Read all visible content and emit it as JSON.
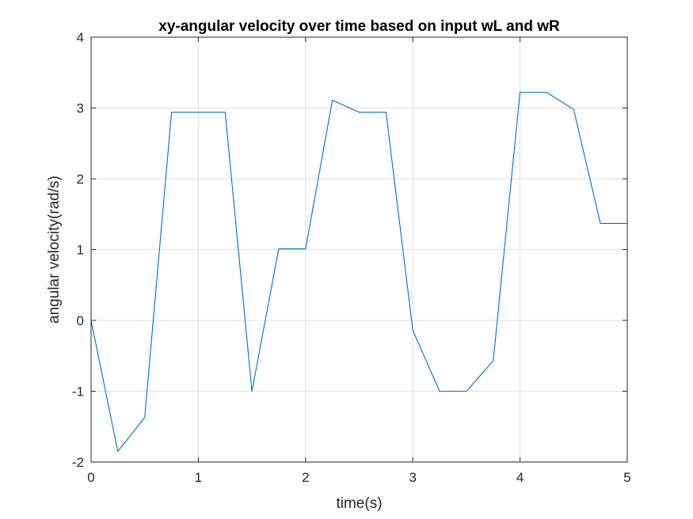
{
  "chart_data": {
    "type": "line",
    "title": "xy-angular velocity over time based on input wL and wR",
    "xlabel": "time(s)",
    "ylabel": "angular velocity(rad/s)",
    "xlim": [
      0,
      5
    ],
    "ylim": [
      -2,
      4
    ],
    "xticks": [
      0,
      1,
      2,
      3,
      4,
      5
    ],
    "yticks": [
      -2,
      -1,
      0,
      1,
      2,
      3,
      4
    ],
    "xtick_labels": [
      "0",
      "1",
      "2",
      "3",
      "4",
      "5"
    ],
    "ytick_labels": [
      "-2",
      "-1",
      "0",
      "1",
      "2",
      "3",
      "4"
    ],
    "grid": true,
    "legend": "none",
    "series": [
      {
        "color": "#0072BD",
        "x": [
          0,
          0.25,
          0.5,
          0.75,
          1.0,
          1.25,
          1.5,
          1.75,
          2.0,
          2.25,
          2.5,
          2.75,
          3.0,
          3.25,
          3.5,
          3.75,
          4.0,
          4.25,
          4.5,
          4.75,
          5.0
        ],
        "y": [
          0,
          -1.85,
          -1.37,
          2.94,
          2.94,
          2.94,
          -1.0,
          1.01,
          1.01,
          3.11,
          2.94,
          2.94,
          -0.14,
          -1.0,
          -1.0,
          -0.57,
          3.22,
          3.22,
          2.98,
          1.37,
          1.37
        ]
      }
    ]
  }
}
